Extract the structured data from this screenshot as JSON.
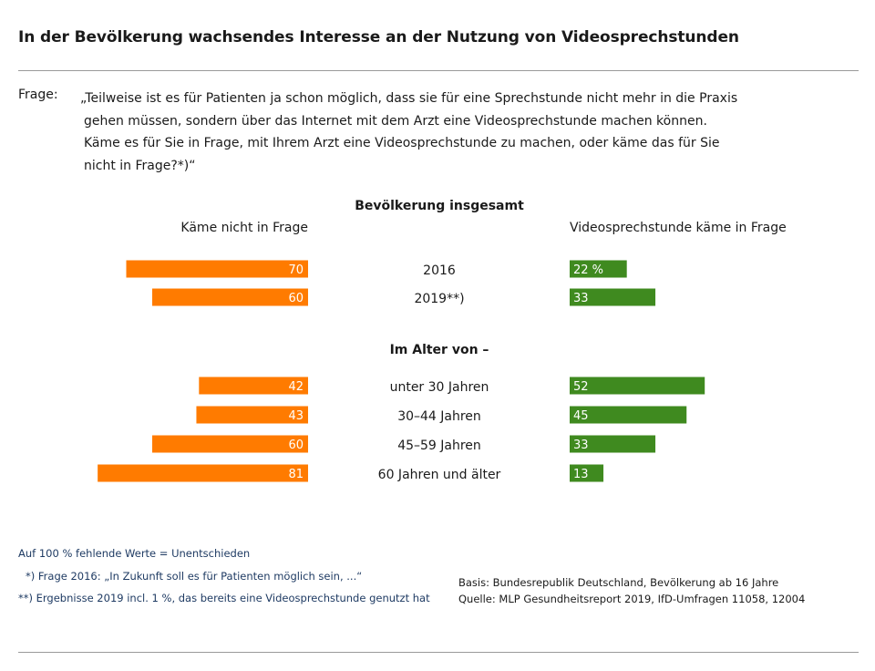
{
  "title": "In der Bevölkerung wachsendes Interesse an der Nutzung von Videosprechstunden",
  "question": {
    "label": "Frage:",
    "lines": [
      "„Teilweise ist es für Patienten ja schon möglich, dass sie für eine Sprechstunde nicht mehr in die Praxis",
      "gehen müssen, sondern über das Internet mit dem Arzt eine Videosprechstunde machen können.",
      "Käme es für Sie in Frage, mit Ihrem Arzt eine Videosprechstunde zu machen, oder käme das für Sie",
      "nicht in Frage?*)“"
    ]
  },
  "chart_data": {
    "type": "bar",
    "orientation": "diverging-horizontal",
    "title": "Bevölkerung insgesamt",
    "subgroup_title": "Im Alter von –",
    "left_label": "Käme nicht in Frage",
    "right_label": "Videosprechstunde käme in Frage",
    "unit": "%",
    "categories": [
      "2016",
      "2019**)",
      "unter 30 Jahren",
      "30–44 Jahren",
      "45–59 Jahren",
      "60 Jahren und älter"
    ],
    "series": [
      {
        "name": "Käme nicht in Frage",
        "color": "#ff7b00",
        "values": [
          70,
          60,
          42,
          43,
          60,
          81
        ],
        "labels": [
          "70",
          "60",
          "42",
          "43",
          "60",
          "81"
        ]
      },
      {
        "name": "Videosprechstunde käme in Frage",
        "color": "#3f8a1f",
        "values": [
          22,
          33,
          52,
          45,
          33,
          13
        ],
        "labels": [
          "22 %",
          "33",
          "52",
          "45",
          "33",
          "13"
        ]
      }
    ],
    "xlim": [
      0,
      100
    ]
  },
  "footnotes": [
    "Auf 100 % fehlende Werte = Unentschieden",
    "*) Frage 2016: „In Zukunft soll es für Patienten möglich sein, ...“",
    "**) Ergebnisse 2019 incl. 1 %, das bereits eine Videosprechstunde genutzt hat"
  ],
  "source": {
    "basis": "Basis: Bundesrepublik Deutschland, Bevölkerung ab 16 Jahre",
    "quelle": "Quelle: MLP Gesundheitsreport 2019, IfD-Umfragen 11058, 12004"
  },
  "colors": {
    "negative": "#ff7b00",
    "positive": "#3f8a1f",
    "footnote": "#1f3b63"
  }
}
